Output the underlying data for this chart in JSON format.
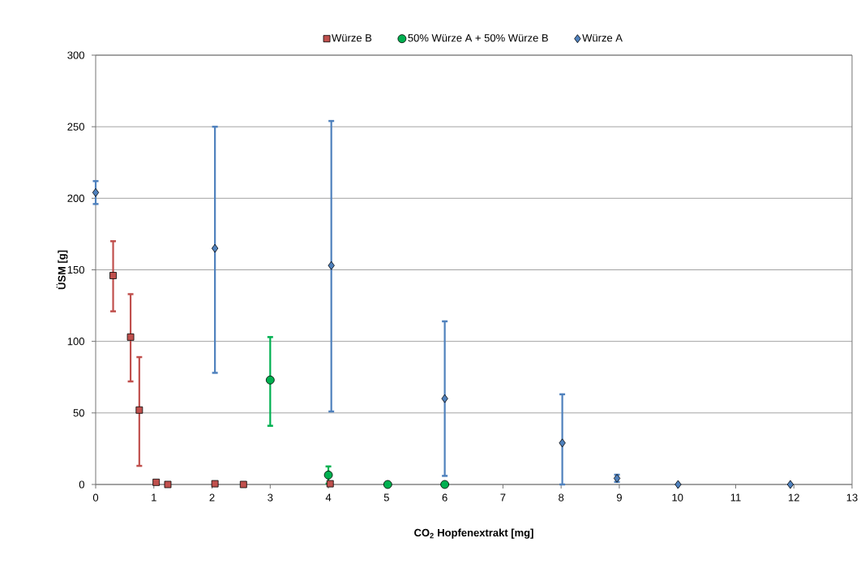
{
  "chart_data": {
    "type": "scatter",
    "xlabel": "CO$_{2}$ Hopfenextrakt [mg]",
    "ylabel": "ÜSM [g]",
    "xlim": [
      0,
      13
    ],
    "ylim": [
      0,
      300
    ],
    "xticks": [
      0,
      1,
      2,
      3,
      4,
      5,
      6,
      7,
      8,
      9,
      10,
      11,
      12,
      13
    ],
    "yticks": [
      0,
      50,
      100,
      150,
      200,
      250,
      300
    ],
    "grid": "y",
    "legend": "top",
    "series": [
      {
        "name": "Würze B",
        "color": "#c0504d",
        "marker": "square",
        "x": [
          0.3,
          0.6,
          0.75,
          1.04,
          1.24,
          2.05,
          2.54,
          4.03
        ],
        "values": [
          146,
          103,
          52,
          1.5,
          0,
          0.5,
          0,
          0.5
        ],
        "errors": [
          [
            121,
            170
          ],
          [
            72,
            133
          ],
          [
            13,
            89
          ],
          null,
          null,
          null,
          null,
          null
        ]
      },
      {
        "name": "50% Würze A + 50% Würze B",
        "color": "#00b050",
        "marker": "circle",
        "x": [
          3.0,
          4.0,
          5.02,
          6.0
        ],
        "values": [
          73,
          6.6,
          0,
          0
        ],
        "errors": [
          [
            41,
            103
          ],
          6,
          null,
          null
        ]
      },
      {
        "name": "Würze A",
        "color": "#4f81bd",
        "marker": "diamond",
        "x": [
          0,
          2.05,
          4.05,
          6.0,
          8.02,
          8.96,
          10.01,
          11.94
        ],
        "values": [
          204,
          165,
          153,
          60,
          29,
          4.3,
          0,
          0
        ],
        "errors": [
          [
            196,
            212
          ],
          [
            78,
            250
          ],
          [
            51,
            254
          ],
          [
            6,
            114
          ],
          [
            0,
            63
          ],
          2.5,
          null,
          null
        ]
      }
    ]
  }
}
